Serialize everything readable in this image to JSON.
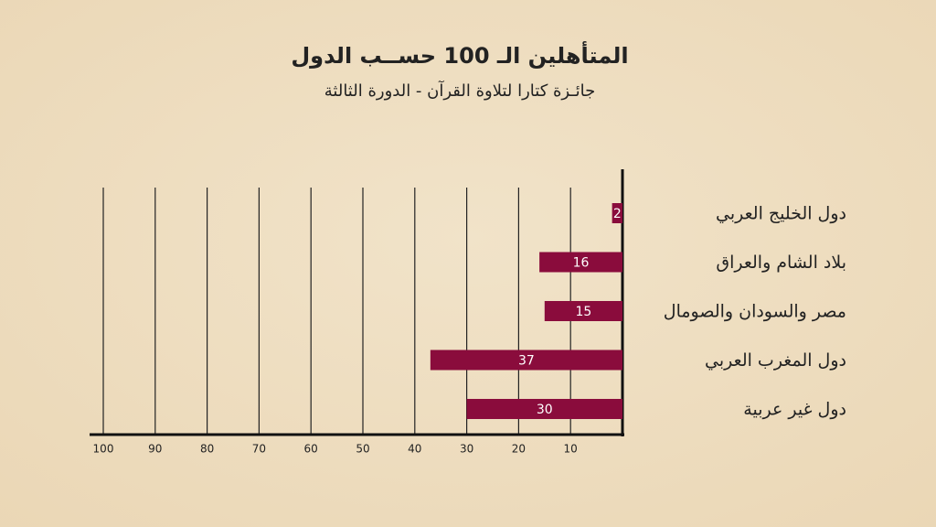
{
  "chart_data": {
    "type": "bar",
    "orientation": "horizontal",
    "x_axis_reversed": true,
    "title": "المتأهلين الـ 100 حســب الدول",
    "subtitle": "جائـزة كتارا لتلاوة القرآن - الدورة الثالثة",
    "categories": [
      "دول الخليج العربي",
      "بلاد الشام والعراق",
      "مصر والسودان والصومال",
      "دول المغرب  العربي",
      "دول غير عربية"
    ],
    "values": [
      2,
      16,
      15,
      37,
      30
    ],
    "color": "#8a0c3c",
    "xlim": [
      0,
      100
    ],
    "xticks": [
      10,
      20,
      30,
      40,
      50,
      60,
      70,
      80,
      90,
      100
    ],
    "grid": true
  }
}
